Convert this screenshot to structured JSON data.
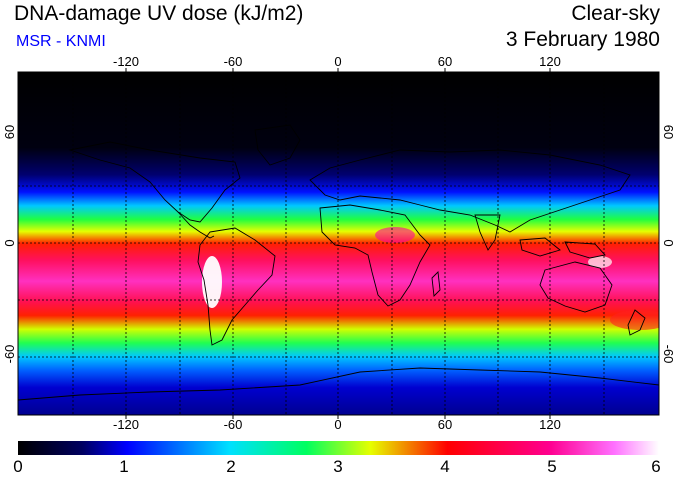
{
  "header": {
    "title": "DNA-damage UV dose (kJ/m2)",
    "source": "MSR - KNMI",
    "condition": "Clear-sky",
    "date": "3 February 1980"
  },
  "map": {
    "projection": "equirectangular",
    "lon_ticks": [
      "-120",
      "-60",
      "0",
      "60",
      "120"
    ],
    "lat_ticks": [
      "60",
      "0",
      "-60"
    ],
    "gridlines": "dashed",
    "coastlines": true
  },
  "colorbar": {
    "labels": [
      "0",
      "1",
      "2",
      "3",
      "4",
      "5",
      "6"
    ],
    "colors": [
      "#000000",
      "#000060",
      "#0000ff",
      "#00c8ff",
      "#00ff60",
      "#e6ff00",
      "#ff0000",
      "#ff0090",
      "#ff60ff",
      "#ffffff"
    ]
  },
  "colors": {
    "source_text": "#0000ff",
    "ocean_night": "#000000"
  }
}
